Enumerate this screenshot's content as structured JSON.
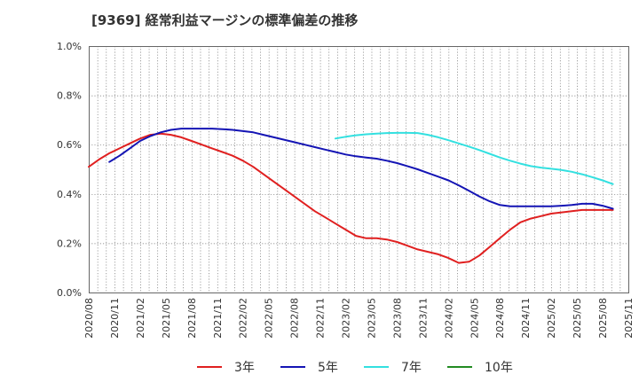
{
  "chart_data": {
    "type": "line",
    "title": "[9369]  経常利益マージンの標準偏差の推移",
    "xlabel": "",
    "ylabel": "",
    "ylim": [
      0,
      1.0
    ],
    "yticks": [
      "0.0%",
      "0.2%",
      "0.4%",
      "0.6%",
      "0.8%",
      "1.0%"
    ],
    "ytick_values": [
      0,
      0.2,
      0.4,
      0.6,
      0.8,
      1.0
    ],
    "xtick_labels": [
      "2020/08",
      "2020/11",
      "2021/02",
      "2021/05",
      "2021/08",
      "2021/11",
      "2022/02",
      "2022/05",
      "2022/08",
      "2022/11",
      "2023/02",
      "2023/05",
      "2023/08",
      "2023/11",
      "2024/02",
      "2024/05",
      "2024/08",
      "2024/11",
      "2025/02",
      "2025/05",
      "2025/08",
      "2025/11"
    ],
    "legend_position": "bottom",
    "series": [
      {
        "name": "3年",
        "color": "#e02020",
        "values": [
          0.51,
          0.54,
          0.565,
          0.585,
          0.605,
          0.625,
          0.64,
          0.645,
          0.64,
          0.63,
          0.615,
          0.6,
          0.585,
          0.57,
          0.555,
          0.535,
          0.51,
          0.48,
          0.45,
          0.42,
          0.39,
          0.36,
          0.33,
          0.305,
          0.28,
          0.255,
          0.23,
          0.22,
          0.22,
          0.215,
          0.205,
          0.19,
          0.175,
          0.165,
          0.155,
          0.14,
          0.12,
          0.125,
          0.15,
          0.185,
          0.22,
          0.255,
          0.285,
          0.3,
          0.31,
          0.32,
          0.325,
          0.33,
          0.335,
          0.335,
          0.335,
          0.335
        ]
      },
      {
        "name": "5年",
        "color": "#1414b4",
        "values": [
          null,
          null,
          0.53,
          0.555,
          0.585,
          0.615,
          0.635,
          0.65,
          0.66,
          0.665,
          0.665,
          0.665,
          0.665,
          0.663,
          0.66,
          0.655,
          0.65,
          0.64,
          0.63,
          0.62,
          0.61,
          0.6,
          0.59,
          0.58,
          0.57,
          0.56,
          0.553,
          0.548,
          0.543,
          0.535,
          0.525,
          0.513,
          0.5,
          0.485,
          0.47,
          0.455,
          0.435,
          0.413,
          0.39,
          0.37,
          0.355,
          0.35,
          0.35,
          0.35,
          0.35,
          0.35,
          0.352,
          0.355,
          0.36,
          0.36,
          0.352,
          0.34
        ]
      },
      {
        "name": "7年",
        "color": "#33e0e0",
        "values": [
          null,
          null,
          null,
          null,
          null,
          null,
          null,
          null,
          null,
          null,
          null,
          null,
          null,
          null,
          null,
          null,
          null,
          null,
          null,
          null,
          null,
          null,
          null,
          null,
          0.625,
          0.632,
          0.638,
          0.642,
          0.645,
          0.647,
          0.648,
          0.648,
          0.647,
          0.64,
          0.63,
          0.618,
          0.605,
          0.592,
          0.578,
          0.563,
          0.548,
          0.535,
          0.523,
          0.513,
          0.507,
          0.502,
          0.497,
          0.49,
          0.48,
          0.468,
          0.455,
          0.44
        ]
      },
      {
        "name": "10年",
        "color": "#228b22",
        "values": []
      }
    ]
  }
}
